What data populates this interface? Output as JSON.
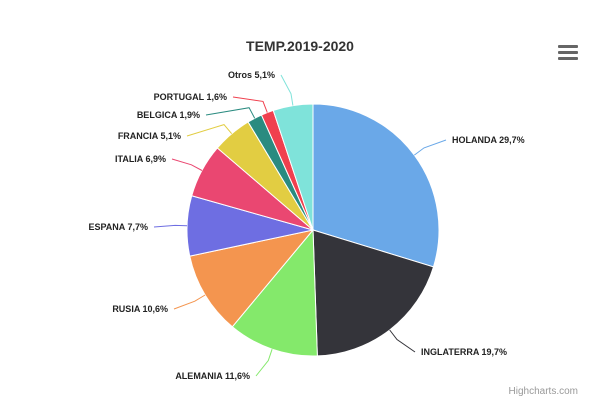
{
  "chart_data": {
    "type": "pie",
    "title": "TEMP.2019-2020",
    "slices": [
      {
        "label": "HOLANDA",
        "value": 29.7,
        "display": "29,7%",
        "color": "#6aa8e8"
      },
      {
        "label": "INGLATERRA",
        "value": 19.7,
        "display": "19,7%",
        "color": "#34343a"
      },
      {
        "label": "ALEMANIA",
        "value": 11.6,
        "display": "11,6%",
        "color": "#84e96b"
      },
      {
        "label": "RUSIA",
        "value": 10.6,
        "display": "10,6%",
        "color": "#f4954f"
      },
      {
        "label": "ESPANA",
        "value": 7.7,
        "display": "7,7%",
        "color": "#6e6ee2"
      },
      {
        "label": "ITALIA",
        "value": 6.9,
        "display": "6,9%",
        "color": "#ea4771"
      },
      {
        "label": "FRANCIA",
        "value": 5.1,
        "display": "5,1%",
        "color": "#e2cd42"
      },
      {
        "label": "BELGICA",
        "value": 1.9,
        "display": "1,9%",
        "color": "#2a8b80"
      },
      {
        "label": "PORTUGAL",
        "value": 1.6,
        "display": "1,6%",
        "color": "#f0404e"
      },
      {
        "label": "Otros",
        "value": 5.1,
        "display": "5,1%",
        "color": "#7fe3da"
      }
    ]
  },
  "credits": "Highcharts.com",
  "menu_icon": "hamburger-menu-icon"
}
